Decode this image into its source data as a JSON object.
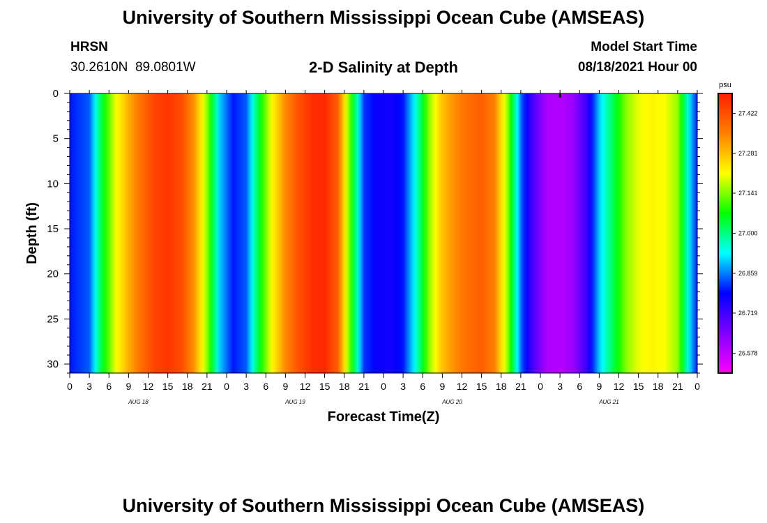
{
  "header": {
    "title": "University of Southern Mississippi Ocean Cube (AMSEAS)",
    "station": "HRSN",
    "coords": "30.2610N  89.0801W",
    "subtitle": "2-D Salinity at Depth",
    "model_label": "Model Start Time",
    "model_time": "08/18/2021 Hour 00"
  },
  "footer": {
    "title": "University of Southern Mississippi Ocean Cube (AMSEAS)"
  },
  "chart_data": {
    "type": "heatmap",
    "title": "2-D Salinity at Depth",
    "xlabel": "Forecast Time(Z)",
    "ylabel": "Depth (ft)",
    "xlim": [
      0,
      96
    ],
    "ylim": [
      0,
      31
    ],
    "y_reversed": true,
    "x_tick_labels": [
      "0",
      "3",
      "6",
      "9",
      "12",
      "15",
      "18",
      "21",
      "0",
      "3",
      "6",
      "9",
      "12",
      "15",
      "18",
      "21",
      "0",
      "3",
      "6",
      "9",
      "12",
      "15",
      "18",
      "21",
      "0",
      "3",
      "6",
      "9",
      "12",
      "15",
      "18",
      "21",
      "0"
    ],
    "y_tick_labels": [
      "0",
      "5",
      "10",
      "15",
      "20",
      "25",
      "30"
    ],
    "y_ticks": [
      0,
      5,
      10,
      15,
      20,
      25,
      30
    ],
    "day_labels": [
      "AUG 18",
      "AUG 19",
      "AUG 20",
      "AUG 21"
    ],
    "colorbar": {
      "unit": "psu",
      "min": 26.508,
      "max": 27.492,
      "tick_labels": [
        "27.422",
        "27.281",
        "27.141",
        "27.000",
        "26.859",
        "26.719",
        "26.578"
      ],
      "tick_values": [
        27.422,
        27.281,
        27.141,
        27.0,
        26.859,
        26.719,
        26.578
      ],
      "colormap": [
        "#ff00ff",
        "#8000ff",
        "#0000ff",
        "#00ffff",
        "#00ff00",
        "#ffff00",
        "#ff8000",
        "#ff2000"
      ]
    },
    "salinity_surface_psu": [
      {
        "hour": 0,
        "psu": 26.8
      },
      {
        "hour": 3,
        "psu": 26.84
      },
      {
        "hour": 5,
        "psu": 27.05
      },
      {
        "hour": 7,
        "psu": 27.2
      },
      {
        "hour": 9,
        "psu": 27.3
      },
      {
        "hour": 11,
        "psu": 27.38
      },
      {
        "hour": 13,
        "psu": 27.44
      },
      {
        "hour": 15,
        "psu": 27.46
      },
      {
        "hour": 17,
        "psu": 27.43
      },
      {
        "hour": 19,
        "psu": 27.33
      },
      {
        "hour": 21,
        "psu": 27.15
      },
      {
        "hour": 23,
        "psu": 26.9
      },
      {
        "hour": 25,
        "psu": 26.8
      },
      {
        "hour": 27,
        "psu": 26.84
      },
      {
        "hour": 29,
        "psu": 27.05
      },
      {
        "hour": 31,
        "psu": 27.22
      },
      {
        "hour": 33,
        "psu": 27.34
      },
      {
        "hour": 35,
        "psu": 27.42
      },
      {
        "hour": 37,
        "psu": 27.47
      },
      {
        "hour": 39,
        "psu": 27.48
      },
      {
        "hour": 41,
        "psu": 27.4
      },
      {
        "hour": 43,
        "psu": 27.1
      },
      {
        "hour": 45,
        "psu": 26.82
      },
      {
        "hour": 47,
        "psu": 26.78
      },
      {
        "hour": 49,
        "psu": 26.77
      },
      {
        "hour": 51,
        "psu": 26.8
      },
      {
        "hour": 53,
        "psu": 26.95
      },
      {
        "hour": 55,
        "psu": 27.15
      },
      {
        "hour": 57,
        "psu": 27.28
      },
      {
        "hour": 59,
        "psu": 27.34
      },
      {
        "hour": 61,
        "psu": 27.38
      },
      {
        "hour": 63,
        "psu": 27.4
      },
      {
        "hour": 65,
        "psu": 27.35
      },
      {
        "hour": 67,
        "psu": 27.15
      },
      {
        "hour": 69,
        "psu": 26.85
      },
      {
        "hour": 71,
        "psu": 26.7
      },
      {
        "hour": 73,
        "psu": 26.6
      },
      {
        "hour": 75,
        "psu": 26.59
      },
      {
        "hour": 77,
        "psu": 26.62
      },
      {
        "hour": 79,
        "psu": 26.72
      },
      {
        "hour": 81,
        "psu": 26.9
      },
      {
        "hour": 83,
        "psu": 27.02
      },
      {
        "hour": 85,
        "psu": 27.14
      },
      {
        "hour": 87,
        "psu": 27.2
      },
      {
        "hour": 89,
        "psu": 27.22
      },
      {
        "hour": 91,
        "psu": 27.21
      },
      {
        "hour": 93,
        "psu": 27.15
      },
      {
        "hour": 95,
        "psu": 26.9
      },
      {
        "hour": 96,
        "psu": 26.8
      }
    ]
  }
}
